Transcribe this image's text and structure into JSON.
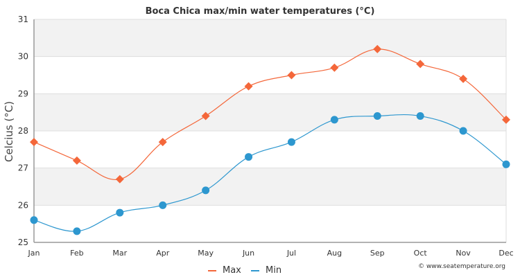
{
  "chart_data": {
    "type": "line",
    "title": "Boca Chica max/min water temperatures (°C)",
    "xlabel": "",
    "ylabel": "Celcius (°C)",
    "categories": [
      "Jan",
      "Feb",
      "Mar",
      "Apr",
      "May",
      "Jun",
      "Jul",
      "Aug",
      "Sep",
      "Oct",
      "Nov",
      "Dec"
    ],
    "ylim": [
      25,
      31
    ],
    "yticks": [
      25,
      26,
      27,
      28,
      29,
      30,
      31
    ],
    "grid": true,
    "legend_position": "bottom-center",
    "series": [
      {
        "name": "Max",
        "color": "#f4673a",
        "marker": "diamond",
        "values": [
          27.7,
          27.2,
          26.7,
          27.7,
          28.4,
          29.2,
          29.5,
          29.7,
          30.2,
          29.8,
          29.4,
          28.3
        ]
      },
      {
        "name": "Min",
        "color": "#2d97cf",
        "marker": "circle",
        "values": [
          25.6,
          25.3,
          25.8,
          26.0,
          26.4,
          27.3,
          27.7,
          28.3,
          28.4,
          28.4,
          28.0,
          27.1
        ]
      }
    ],
    "credit": "© www.seatemperature.org"
  }
}
